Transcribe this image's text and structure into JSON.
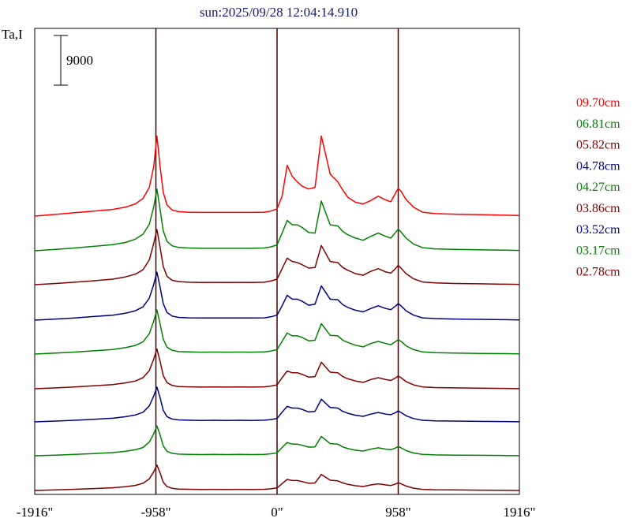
{
  "chart_data": {
    "type": "line",
    "title": "sun:2025/09/28 12:04:14.910",
    "ylabel": "Ta,I",
    "scale_bar_label": "9000",
    "scale_bar_value": 9000,
    "xlim": [
      -1916,
      1916
    ],
    "x_ticks": [
      {
        "value": -1916,
        "label": "-1916\""
      },
      {
        "value": -958,
        "label": "-958\""
      },
      {
        "value": 0,
        "label": "0\""
      },
      {
        "value": 958,
        "label": "958\""
      },
      {
        "value": 1916,
        "label": "1916\""
      }
    ],
    "vertical_lines": [
      -958,
      0,
      958
    ],
    "series": [
      {
        "name": "09.70cm",
        "color": "#ff0000"
      },
      {
        "name": "06.81cm",
        "color": "#008000"
      },
      {
        "name": "05.82cm",
        "color": "#800000"
      },
      {
        "name": "04.78cm",
        "color": "#000080"
      },
      {
        "name": "04.27cm",
        "color": "#008000"
      },
      {
        "name": "03.86cm",
        "color": "#800000"
      },
      {
        "name": "03.52cm",
        "color": "#000080"
      },
      {
        "name": "03.17cm",
        "color": "#008000"
      },
      {
        "name": "02.78cm",
        "color": "#800000"
      }
    ],
    "x": [
      -1916,
      -1750,
      -1600,
      -1450,
      -1300,
      -1200,
      -1120,
      -1060,
      -1010,
      -975,
      -950,
      -925,
      -900,
      -870,
      -830,
      -780,
      -700,
      -600,
      -500,
      -400,
      -300,
      -200,
      -100,
      -50,
      0,
      40,
      80,
      120,
      160,
      200,
      250,
      300,
      350,
      420,
      480,
      520,
      560,
      620,
      680,
      740,
      800,
      860,
      900,
      940,
      958,
      980,
      1020,
      1080,
      1150,
      1250,
      1400,
      1600,
      1800,
      1916
    ],
    "y_offsets": [
      [
        0,
        300,
        600,
        900,
        1200,
        1600,
        2200,
        3200,
        5200,
        9000,
        14500,
        9000,
        4300,
        2000,
        1100,
        800,
        700,
        650,
        650,
        650,
        650,
        650,
        700,
        900,
        1300,
        3600,
        9200,
        7200,
        6200,
        5400,
        4900,
        5200,
        14500,
        7600,
        6200,
        4700,
        3400,
        2500,
        2200,
        2800,
        3600,
        2900,
        2600,
        4300,
        5000,
        4500,
        3000,
        1600,
        700,
        450,
        350,
        250,
        150,
        100
      ],
      [
        0,
        250,
        500,
        800,
        1100,
        1500,
        2100,
        3000,
        4800,
        8000,
        11200,
        7500,
        3600,
        1700,
        900,
        600,
        500,
        450,
        450,
        450,
        450,
        450,
        500,
        700,
        1050,
        3200,
        5500,
        4700,
        4700,
        4200,
        3300,
        3200,
        9000,
        4700,
        4500,
        3500,
        2900,
        2300,
        1900,
        2600,
        3200,
        2600,
        2300,
        3400,
        3900,
        3400,
        2300,
        1200,
        550,
        350,
        250,
        180,
        100,
        60
      ],
      [
        0,
        220,
        450,
        700,
        1000,
        1400,
        1900,
        2700,
        4500,
        7500,
        10000,
        6800,
        3300,
        1500,
        800,
        550,
        450,
        400,
        420,
        400,
        420,
        400,
        450,
        650,
        1000,
        2900,
        4800,
        4200,
        4000,
        3600,
        3000,
        3100,
        7100,
        4200,
        4000,
        3100,
        2600,
        2000,
        1700,
        2400,
        2900,
        2300,
        2100,
        3000,
        3500,
        3000,
        2000,
        1050,
        480,
        320,
        220,
        150,
        90,
        50
      ],
      [
        0,
        200,
        400,
        650,
        900,
        1250,
        1700,
        2400,
        4000,
        6500,
        8700,
        6000,
        3000,
        1400,
        750,
        500,
        420,
        380,
        400,
        380,
        400,
        380,
        420,
        600,
        900,
        2600,
        4500,
        3800,
        3800,
        3400,
        2700,
        2900,
        6200,
        3800,
        3700,
        2800,
        2300,
        1800,
        1500,
        2100,
        2600,
        2100,
        1900,
        2600,
        3000,
        2600,
        1700,
        900,
        420,
        280,
        200,
        140,
        80,
        40
      ],
      [
        0,
        180,
        360,
        580,
        820,
        1150,
        1550,
        2200,
        3700,
        6000,
        8000,
        5500,
        2700,
        1250,
        680,
        450,
        380,
        340,
        360,
        340,
        360,
        340,
        380,
        540,
        800,
        2300,
        3800,
        3300,
        3300,
        3000,
        2400,
        2500,
        5500,
        3400,
        3300,
        2500,
        2100,
        1600,
        1300,
        1900,
        2300,
        1900,
        1700,
        2300,
        2600,
        2300,
        1500,
        800,
        380,
        250,
        180,
        120,
        70,
        30
      ],
      [
        0,
        160,
        330,
        530,
        750,
        1050,
        1400,
        2000,
        3300,
        5400,
        7200,
        5000,
        2400,
        1100,
        600,
        400,
        340,
        300,
        320,
        300,
        320,
        300,
        340,
        480,
        700,
        2000,
        3200,
        2900,
        2900,
        2600,
        2100,
        2200,
        4800,
        3000,
        2900,
        2200,
        1800,
        1400,
        1150,
        1650,
        2000,
        1650,
        1500,
        2000,
        2300,
        2000,
        1300,
        700,
        330,
        220,
        160,
        100,
        60,
        20
      ],
      [
        0,
        140,
        290,
        470,
        660,
        930,
        1250,
        1750,
        2900,
        4700,
        6300,
        4400,
        2100,
        950,
        520,
        350,
        300,
        260,
        280,
        260,
        280,
        260,
        300,
        420,
        620,
        1750,
        2800,
        2500,
        2500,
        2250,
        1800,
        1900,
        4100,
        2600,
        2500,
        1900,
        1550,
        1200,
        1000,
        1400,
        1700,
        1400,
        1300,
        1700,
        2000,
        1700,
        1100,
        600,
        280,
        190,
        140,
        90,
        50,
        15
      ],
      [
        0,
        120,
        250,
        400,
        570,
        800,
        1080,
        1500,
        2500,
        4000,
        5400,
        3800,
        1800,
        820,
        450,
        300,
        260,
        220,
        240,
        220,
        240,
        220,
        260,
        360,
        540,
        1500,
        2400,
        2100,
        2100,
        1900,
        1550,
        1600,
        3500,
        2200,
        2100,
        1600,
        1300,
        1000,
        850,
        1200,
        1450,
        1200,
        1100,
        1450,
        1700,
        1450,
        950,
        500,
        240,
        160,
        120,
        80,
        40,
        10
      ],
      [
        0,
        100,
        210,
        340,
        480,
        680,
        920,
        1300,
        2100,
        3400,
        4600,
        3200,
        1500,
        700,
        380,
        250,
        220,
        190,
        200,
        190,
        200,
        190,
        220,
        300,
        460,
        1250,
        2000,
        1800,
        1800,
        1600,
        1300,
        1350,
        2900,
        1850,
        1750,
        1350,
        1100,
        850,
        720,
        1000,
        1200,
        1000,
        900,
        1200,
        1400,
        1200,
        800,
        420,
        200,
        130,
        100,
        60,
        30,
        5
      ]
    ]
  }
}
